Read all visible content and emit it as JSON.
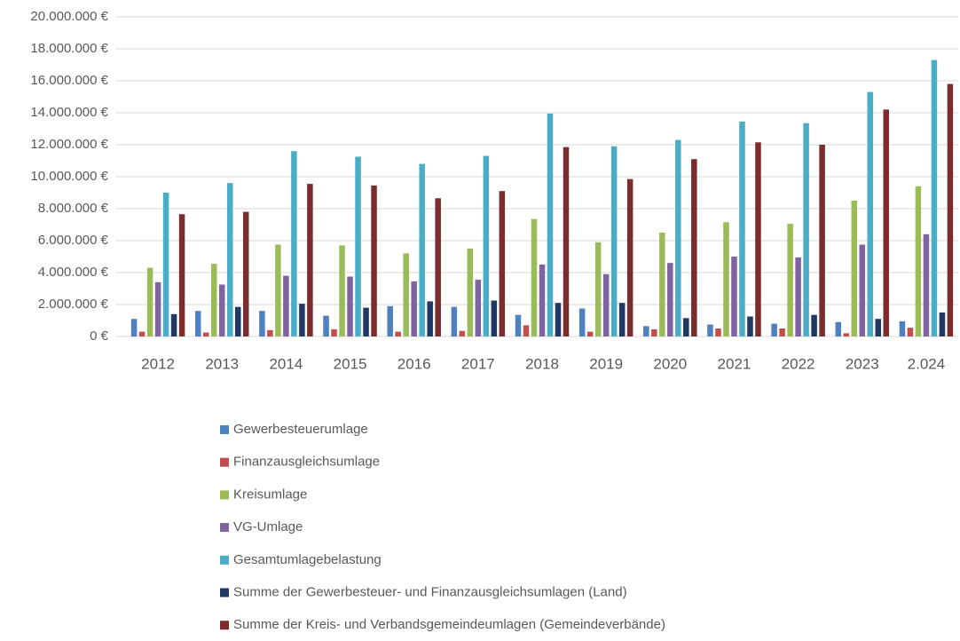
{
  "chart_data": {
    "type": "bar",
    "categories": [
      "2012",
      "2013",
      "2014",
      "2015",
      "2016",
      "2017",
      "2018",
      "2019",
      "2020",
      "2021",
      "2022",
      "2023",
      "2.024"
    ],
    "series": [
      {
        "name": "Gewerbesteuerumlage",
        "color": "#4f81bd",
        "values": [
          1100000,
          1600000,
          1600000,
          1300000,
          1900000,
          1850000,
          1350000,
          1750000,
          650000,
          750000,
          800000,
          900000,
          950000
        ]
      },
      {
        "name": "Finanzausgleichsumlage",
        "color": "#c0504d",
        "values": [
          300000,
          250000,
          400000,
          450000,
          300000,
          350000,
          700000,
          300000,
          450000,
          500000,
          500000,
          200000,
          550000
        ]
      },
      {
        "name": "Kreisumlage",
        "color": "#9bbb59",
        "values": [
          4300000,
          4550000,
          5750000,
          5700000,
          5200000,
          5500000,
          7350000,
          5900000,
          6500000,
          7150000,
          7050000,
          8500000,
          9400000
        ]
      },
      {
        "name": "VG-Umlage",
        "color": "#8064a2",
        "values": [
          3400000,
          3250000,
          3800000,
          3750000,
          3450000,
          3550000,
          4500000,
          3900000,
          4600000,
          5000000,
          4950000,
          5750000,
          6400000
        ]
      },
      {
        "name": "Gesamtumlagebelastung",
        "color": "#4bacc6",
        "values": [
          9000000,
          9600000,
          11600000,
          11250000,
          10800000,
          11300000,
          13950000,
          11900000,
          12300000,
          13450000,
          13350000,
          15300000,
          17300000
        ]
      },
      {
        "name": "Summe der Gewerbesteuer- und Finanzausgleichsumlagen (Land)",
        "color": "#1f3864",
        "values": [
          1400000,
          1850000,
          2050000,
          1800000,
          2200000,
          2250000,
          2100000,
          2100000,
          1150000,
          1250000,
          1350000,
          1100000,
          1500000
        ]
      },
      {
        "name": "Summe der Kreis- und Verbandsgemeindeumlagen (Gemeindeverbände)",
        "color": "#7b2c2c",
        "values": [
          7650000,
          7800000,
          9550000,
          9450000,
          8650000,
          9100000,
          11850000,
          9850000,
          11100000,
          12150000,
          12000000,
          14200000,
          15800000
        ]
      }
    ],
    "ylim": [
      0,
      20000000
    ],
    "yticks": [
      {
        "value": 0,
        "label": "0 €"
      },
      {
        "value": 2000000,
        "label": "2.000.000 €"
      },
      {
        "value": 4000000,
        "label": "4.000.000 €"
      },
      {
        "value": 6000000,
        "label": "6.000.000 €"
      },
      {
        "value": 8000000,
        "label": "8.000.000 €"
      },
      {
        "value": 10000000,
        "label": "10.000.000 €"
      },
      {
        "value": 12000000,
        "label": "12.000.000 €"
      },
      {
        "value": 14000000,
        "label": "14.000.000 €"
      },
      {
        "value": 16000000,
        "label": "16.000.000 €"
      },
      {
        "value": 18000000,
        "label": "18.000.000 €"
      },
      {
        "value": 20000000,
        "label": "20.000.000 €"
      }
    ],
    "grid": true
  }
}
